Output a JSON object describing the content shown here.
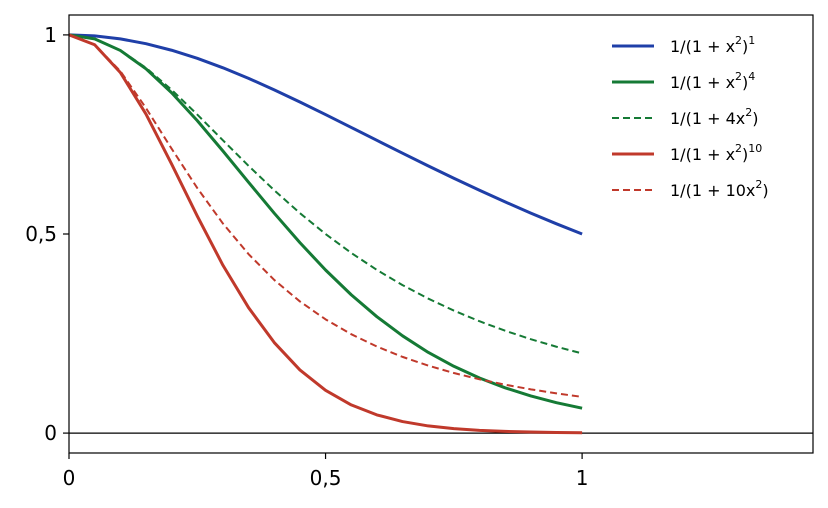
{
  "chart_data": {
    "type": "line",
    "title": "",
    "xlabel": "",
    "ylabel": "",
    "xlim": [
      0,
      1.45
    ],
    "ylim": [
      -0.05,
      1.05
    ],
    "xticks": [
      {
        "value": 0,
        "label": "0"
      },
      {
        "value": 0.5,
        "label": "0,5"
      },
      {
        "value": 1,
        "label": "1"
      }
    ],
    "yticks": [
      {
        "value": 0,
        "label": "0"
      },
      {
        "value": 0.5,
        "label": "0,5"
      },
      {
        "value": 1,
        "label": "1"
      }
    ],
    "grid": false,
    "legend_position": "top-right",
    "zero_line": true,
    "x": [
      0,
      0.05,
      0.1,
      0.15,
      0.2,
      0.25,
      0.3,
      0.35,
      0.4,
      0.45,
      0.5,
      0.55,
      0.6,
      0.65,
      0.7,
      0.75,
      0.8,
      0.85,
      0.9,
      0.95,
      1.0
    ],
    "series": [
      {
        "name": "1/(1 + x²)¹",
        "name_base": "1/(1 + x",
        "name_sup1": "2",
        "name_mid": ")",
        "name_sup2": "1",
        "color": "#1f3fa8",
        "dash": "solid",
        "values": [
          1.0,
          0.9975,
          0.9901,
          0.978,
          0.9615,
          0.9412,
          0.9174,
          0.8909,
          0.8621,
          0.8316,
          0.8,
          0.7677,
          0.7353,
          0.703,
          0.6711,
          0.64,
          0.6098,
          0.5806,
          0.5525,
          0.5256,
          0.5
        ]
      },
      {
        "name": "1/(1 + x²)⁴",
        "name_base": "1/(1 + x",
        "name_sup1": "2",
        "name_mid": ")",
        "name_sup2": "4",
        "color": "#157a35",
        "dash": "solid",
        "values": [
          1.0,
          0.99,
          0.961,
          0.9149,
          0.8548,
          0.7847,
          0.7084,
          0.6299,
          0.5523,
          0.4783,
          0.4096,
          0.3474,
          0.2923,
          0.2443,
          0.2028,
          0.1678,
          0.1383,
          0.1137,
          0.0932,
          0.0763,
          0.0625
        ]
      },
      {
        "name": "1/(1 + 4x²)",
        "name_base": "1/(1 + 4x",
        "name_sup1": "2",
        "name_mid": ")",
        "name_sup2": "",
        "color": "#157a35",
        "dash": "dashed",
        "values": [
          1.0,
          0.9901,
          0.9615,
          0.9174,
          0.8621,
          0.8,
          0.7353,
          0.6711,
          0.6098,
          0.5525,
          0.5,
          0.4525,
          0.4098,
          0.3717,
          0.3378,
          0.3077,
          0.2809,
          0.2571,
          0.2358,
          0.2169,
          0.2
        ]
      },
      {
        "name": "1/(1 + x²)¹⁰",
        "name_base": "1/(1 + x",
        "name_sup1": "2",
        "name_mid": ")",
        "name_sup2": "10",
        "color": "#c0392b",
        "dash": "solid",
        "values": [
          1.0,
          0.9753,
          0.9057,
          0.8013,
          0.6756,
          0.5451,
          0.4215,
          0.3149,
          0.2274,
          0.1586,
          0.1074,
          0.0708,
          0.0457,
          0.0289,
          0.018,
          0.0111,
          0.0069,
          0.0042,
          0.0026,
          0.0016,
          0.001
        ]
      },
      {
        "name": "1/(1 + 10x²)",
        "name_base": "1/(1 + 10x",
        "name_sup1": "2",
        "name_mid": ")",
        "name_sup2": "",
        "color": "#c0392b",
        "dash": "dashed",
        "values": [
          1.0,
          0.9756,
          0.9091,
          0.8163,
          0.7143,
          0.6154,
          0.5263,
          0.4494,
          0.3846,
          0.3306,
          0.2857,
          0.2484,
          0.2174,
          0.1914,
          0.1695,
          0.1509,
          0.1351,
          0.1216,
          0.1099,
          0.0998,
          0.0909
        ]
      }
    ]
  }
}
